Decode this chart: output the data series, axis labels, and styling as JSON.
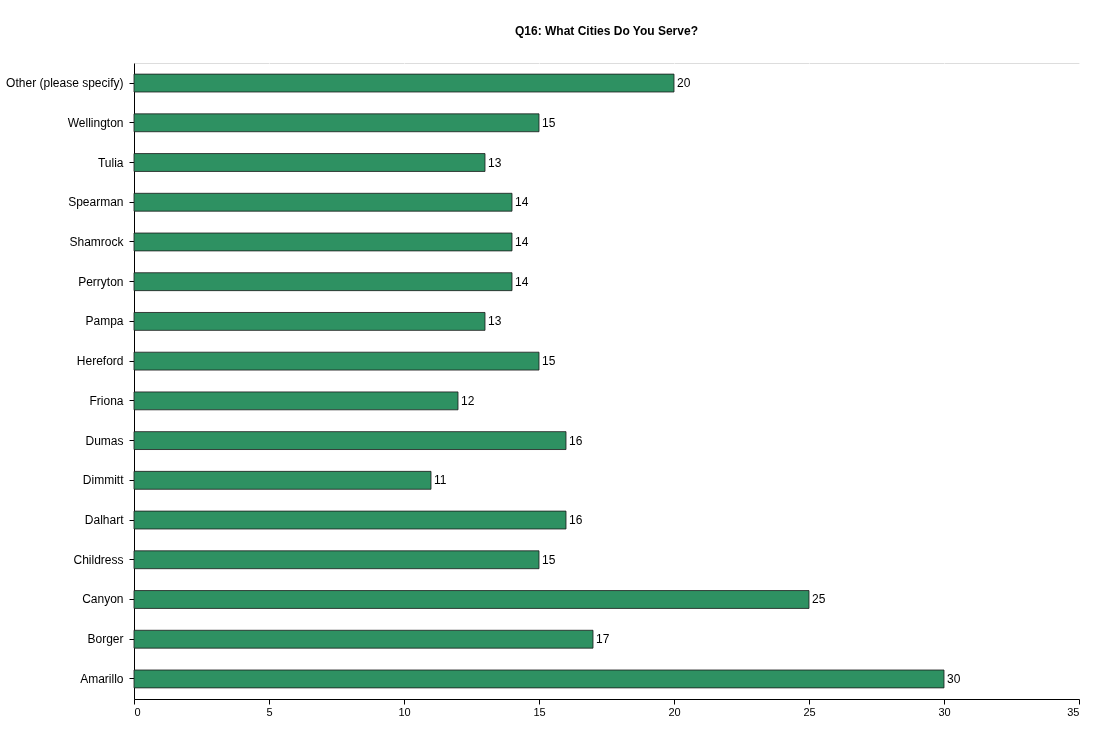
{
  "chart_data": {
    "type": "bar",
    "orientation": "horizontal",
    "title": "Q16: What Cities Do You Serve?",
    "categories": [
      "Other (please specify)",
      "Wellington",
      "Tulia",
      "Spearman",
      "Shamrock",
      "Perryton",
      "Pampa",
      "Hereford",
      "Friona",
      "Dumas",
      "Dimmitt",
      "Dalhart",
      "Childress",
      "Canyon",
      "Borger",
      "Amarillo"
    ],
    "values": [
      20,
      15,
      13,
      14,
      14,
      14,
      13,
      15,
      12,
      16,
      11,
      16,
      15,
      25,
      17,
      30
    ],
    "color": "#2e9162",
    "xlim": [
      0,
      35
    ],
    "xticks": [
      0,
      5,
      10,
      15,
      20,
      25,
      30,
      35
    ],
    "grid": "x",
    "data_labels": true
  }
}
